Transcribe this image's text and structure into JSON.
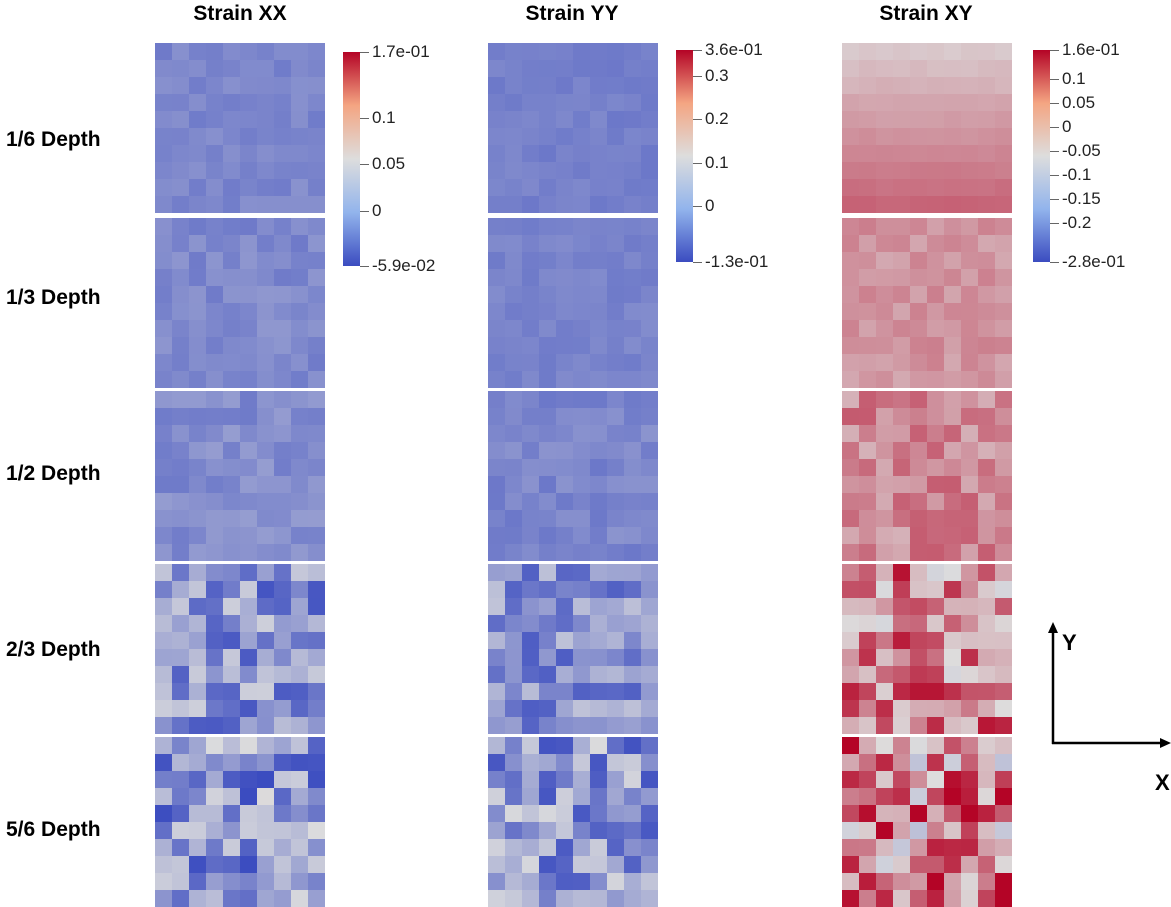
{
  "columns": [
    {
      "title": "Strain XX",
      "colorbar": {
        "max_label": "1.7e-01",
        "min_label": "-5.9e-02",
        "ticks": [
          {
            "label": "1.7e-01",
            "frac": 0.0
          },
          {
            "label": "0.1",
            "frac": 0.308
          },
          {
            "label": "0.05",
            "frac": 0.525
          },
          {
            "label": "0",
            "frac": 0.743
          },
          {
            "label": "-5.9e-02",
            "frac": 1.0
          }
        ]
      }
    },
    {
      "title": "Strain YY",
      "colorbar": {
        "max_label": "3.6e-01",
        "min_label": "-1.3e-01",
        "ticks": [
          {
            "label": "3.6e-01",
            "frac": 0.0
          },
          {
            "label": "0.3",
            "frac": 0.122
          },
          {
            "label": "0.2",
            "frac": 0.327
          },
          {
            "label": "0.1",
            "frac": 0.531
          },
          {
            "label": "0",
            "frac": 0.735
          },
          {
            "label": "-1.3e-01",
            "frac": 1.0
          }
        ]
      }
    },
    {
      "title": "Strain XY",
      "colorbar": {
        "max_label": "1.6e-01",
        "min_label": "-2.8e-01",
        "ticks": [
          {
            "label": "1.6e-01",
            "frac": 0.0
          },
          {
            "label": "0.1",
            "frac": 0.136
          },
          {
            "label": "0.05",
            "frac": 0.25
          },
          {
            "label": "0",
            "frac": 0.364
          },
          {
            "label": "-0.05",
            "frac": 0.477
          },
          {
            "label": "-0.1",
            "frac": 0.591
          },
          {
            "label": "-0.15",
            "frac": 0.705
          },
          {
            "label": "-0.2",
            "frac": 0.818
          },
          {
            "label": "-2.8e-01",
            "frac": 1.0
          }
        ]
      }
    }
  ],
  "rows": [
    "1/6 Depth",
    "1/3 Depth",
    "1/2 Depth",
    "2/3 Depth",
    "5/6 Depth"
  ],
  "axes": {
    "y_label": "Y",
    "x_label": "X"
  },
  "colormap": {
    "low": "#3b4cc0",
    "mid": "#dddddd",
    "high": "#b40426"
  }
}
